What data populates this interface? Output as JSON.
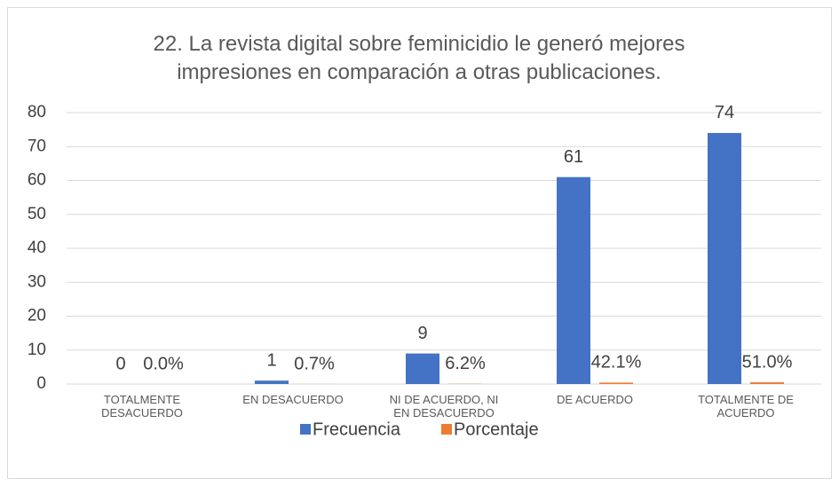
{
  "chart_data": {
    "type": "bar",
    "title": "22. La revista digital sobre feminicidio le generó mejores impresiones en comparación a otras publicaciones.",
    "categories": [
      "TOTALMENTE DESACUERDO",
      "EN DESACUERDO",
      "NI DE ACUERDO, NI EN DESACUERDO",
      "DE ACUERDO",
      "TOTALMENTE DE ACUERDO"
    ],
    "series": [
      {
        "name": "Frecuencia",
        "color": "#4472c4",
        "values": [
          0,
          1,
          9,
          61,
          74
        ]
      },
      {
        "name": "Porcentaje",
        "color": "#ed7d31",
        "values": [
          0,
          0.007,
          0.062,
          0.421,
          0.51
        ],
        "value_labels": [
          "0.0%",
          "0.7%",
          "6.2%",
          "42.1%",
          "51.0%"
        ]
      }
    ],
    "ylim": [
      0,
      80
    ],
    "yticks": [
      0,
      10,
      20,
      30,
      40,
      50,
      60,
      70,
      80
    ],
    "grid": true,
    "legend": "bottom"
  }
}
